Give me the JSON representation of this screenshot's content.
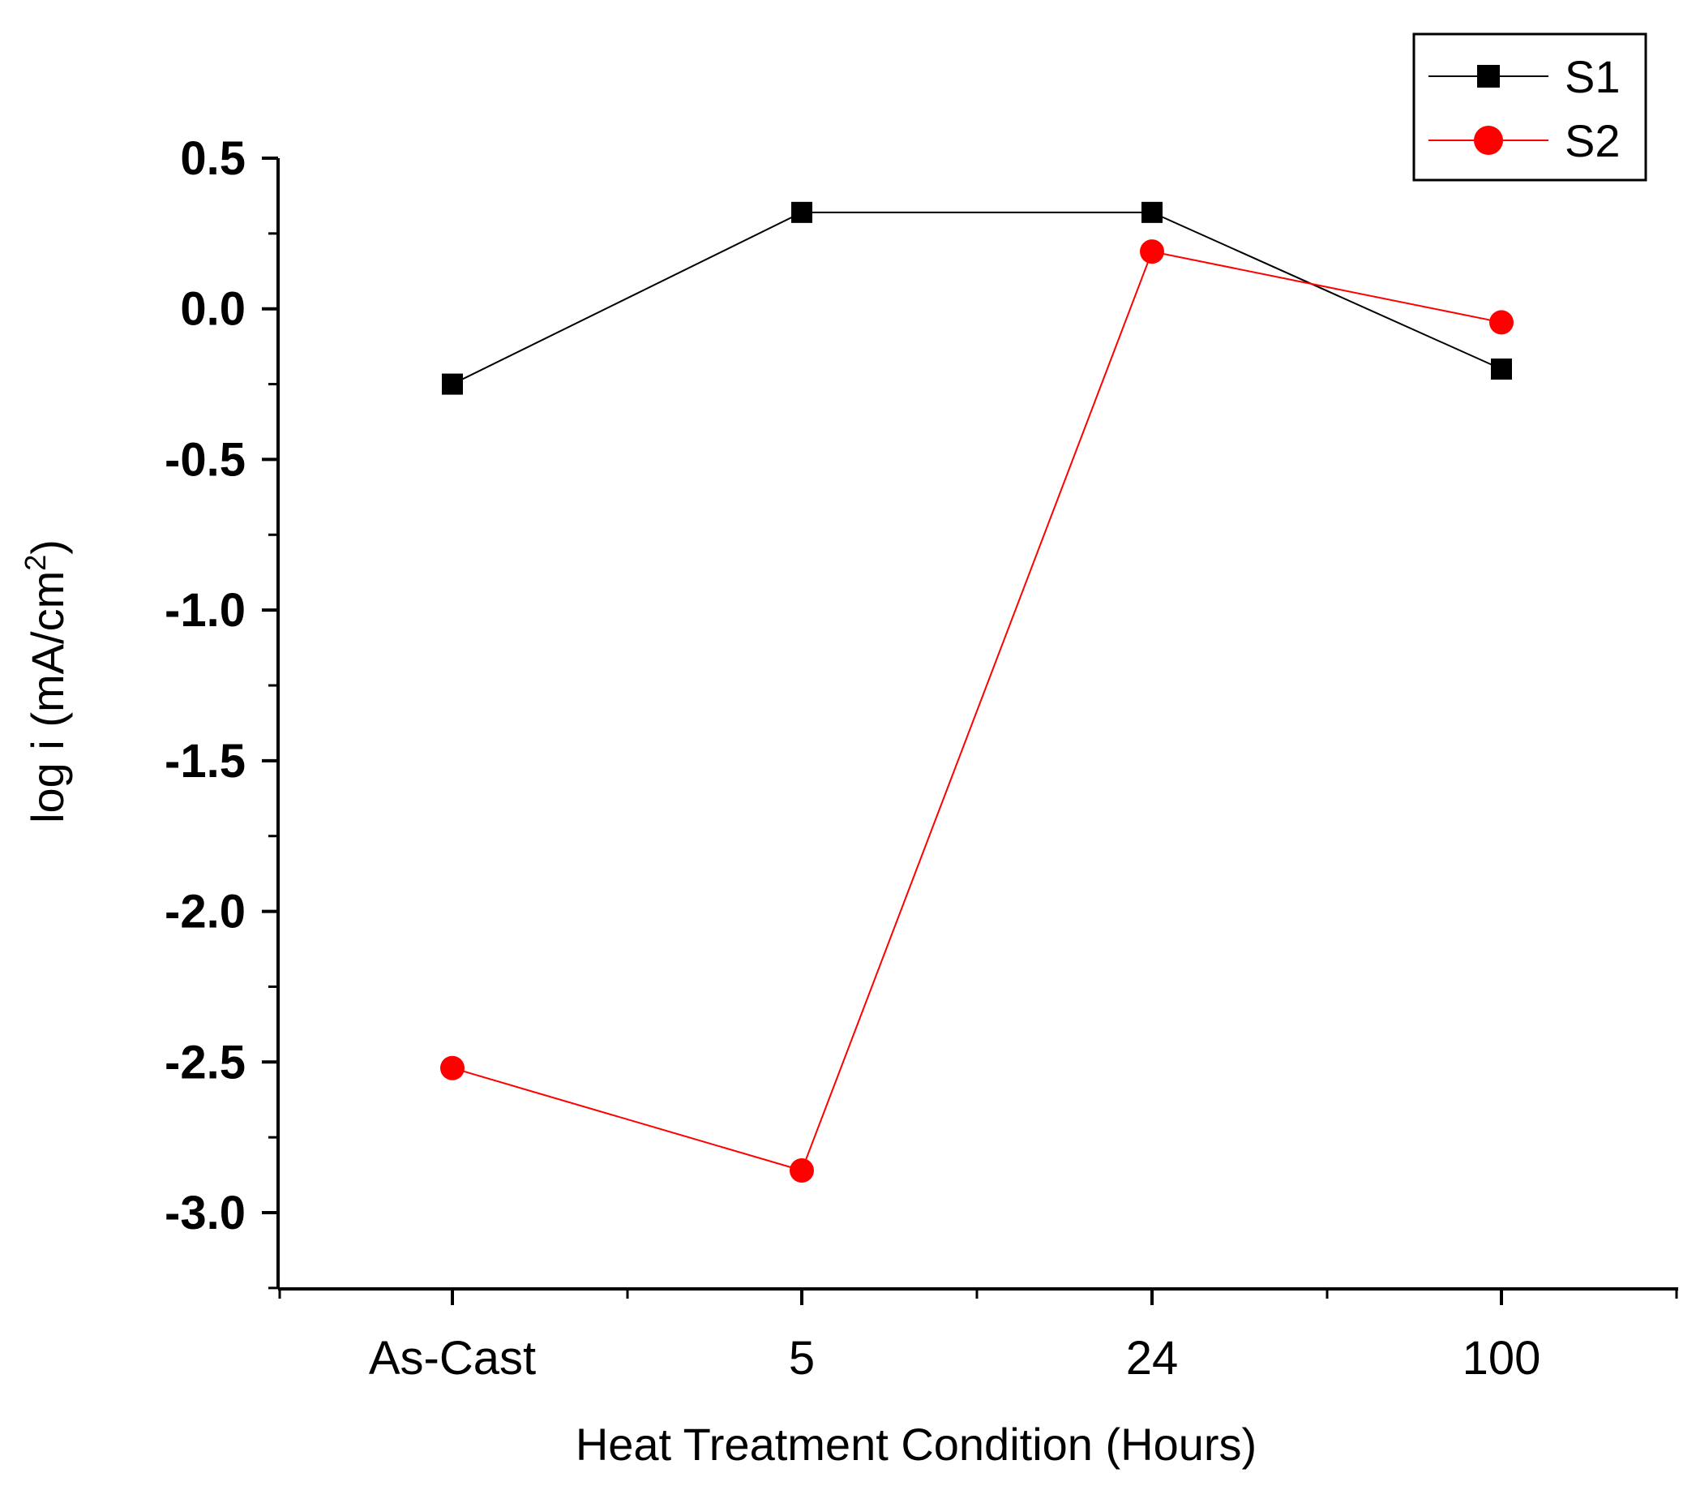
{
  "chart_data": {
    "type": "line",
    "title": "",
    "categories": [
      "As-Cast",
      "5",
      "24",
      "100"
    ],
    "xlabel": "Heat Treatment Condition (Hours)",
    "ylabel": "log i (mA/cm",
    "ylabel_superscript": "2",
    "ylabel_close": ")",
    "ylim": [
      -3.25,
      0.5
    ],
    "yticks": [
      0.5,
      0.0,
      -0.5,
      -1.0,
      -1.5,
      -2.0,
      -2.5,
      -3.0
    ],
    "ytick_labels": [
      "0.5",
      "0.0",
      "-0.5",
      "-1.0",
      "-1.5",
      "-2.0",
      "-2.5",
      "-3.0"
    ],
    "grid": false,
    "legend_position": "top-right",
    "series": [
      {
        "name": "S1",
        "color": "#000000",
        "marker": "square",
        "values": [
          -0.25,
          0.32,
          0.32,
          -0.2
        ]
      },
      {
        "name": "S2",
        "color": "#ff0000",
        "marker": "circle",
        "values": [
          -2.52,
          -2.86,
          0.19,
          -0.045
        ]
      }
    ]
  }
}
